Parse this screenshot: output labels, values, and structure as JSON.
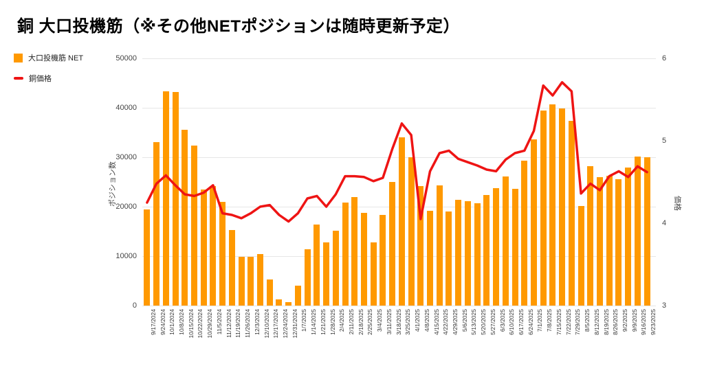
{
  "title": "銅 大口投機筋（※その他NETポジションは随時更新予定）",
  "legend": {
    "bar_label": "大口投機筋 NET",
    "line_label": "銅価格"
  },
  "chart_data": {
    "type": "bar",
    "title": "銅 大口投機筋（※その他NETポジションは随時更新予定）",
    "grid": true,
    "legend_position": "top-left",
    "categories": [
      "9/17/2024",
      "9/24/2024",
      "10/1/2024",
      "10/8/2024",
      "10/15/2024",
      "10/22/2024",
      "10/29/2024",
      "11/5/2024",
      "11/12/2024",
      "11/19/2024",
      "11/26/2024",
      "12/3/2024",
      "12/10/2024",
      "12/17/2024",
      "12/24/2024",
      "12/31/2024",
      "1/7/2025",
      "1/14/2025",
      "1/21/2025",
      "1/28/2025",
      "2/4/2025",
      "2/11/2025",
      "2/18/2025",
      "2/25/2025",
      "3/4/2025",
      "3/11/2025",
      "3/18/2025",
      "3/25/2025",
      "4/1/2025",
      "4/8/2025",
      "4/15/2025",
      "4/22/2025",
      "4/29/2025",
      "5/6/2025",
      "5/13/2025",
      "5/20/2025",
      "5/27/2025",
      "6/3/2025",
      "6/10/2025",
      "6/17/2025",
      "6/24/2025",
      "7/1/2025",
      "7/8/2025",
      "7/15/2025",
      "7/22/2025",
      "7/29/2025",
      "8/5/2025",
      "8/12/2025",
      "8/19/2025",
      "8/26/2025",
      "9/2/2025",
      "9/9/2025",
      "9/16/2025",
      "9/23/2025"
    ],
    "series": [
      {
        "name": "大口投機筋 NET",
        "type": "bar",
        "axis": "left",
        "color": "#ff9900",
        "values": [
          19500,
          33000,
          43300,
          43200,
          35500,
          32300,
          23500,
          24200,
          21000,
          15300,
          9800,
          9900,
          10400,
          5300,
          1300,
          700,
          4000,
          11400,
          16400,
          12800,
          15100,
          20800,
          21900,
          18800,
          12800,
          18400,
          25000,
          34000,
          30000,
          24100,
          19100,
          24300,
          19000,
          21400,
          21100,
          20700,
          22300,
          23700,
          26100,
          23600,
          29300,
          33600,
          39500,
          40700,
          39800,
          37400,
          20100,
          28200,
          26000,
          26200,
          25500,
          27900,
          30100,
          30000
        ]
      },
      {
        "name": "銅価格",
        "type": "line",
        "axis": "right",
        "color": "#ee1414",
        "values": [
          4.25,
          4.48,
          4.58,
          4.46,
          4.35,
          4.33,
          4.37,
          4.46,
          4.12,
          4.1,
          4.06,
          4.12,
          4.2,
          4.22,
          4.1,
          4.02,
          4.12,
          4.3,
          4.33,
          4.2,
          4.35,
          4.57,
          4.57,
          4.56,
          4.51,
          4.55,
          4.9,
          5.21,
          5.07,
          4.05,
          4.63,
          4.85,
          4.88,
          4.78,
          4.74,
          4.7,
          4.65,
          4.63,
          4.77,
          4.85,
          4.88,
          5.12,
          5.67,
          5.55,
          5.71,
          5.6,
          4.36,
          4.48,
          4.4,
          4.57,
          4.63,
          4.56,
          4.69,
          4.62
        ]
      }
    ],
    "left_axis": {
      "title": "ポジション数",
      "min": 0,
      "max": 50000,
      "ticks": [
        0,
        10000,
        20000,
        30000,
        40000,
        50000
      ]
    },
    "right_axis": {
      "title": "価格",
      "min": 3,
      "max": 6,
      "ticks": [
        3,
        4,
        5,
        6
      ]
    },
    "gridline_color": "#e6e6e6"
  }
}
